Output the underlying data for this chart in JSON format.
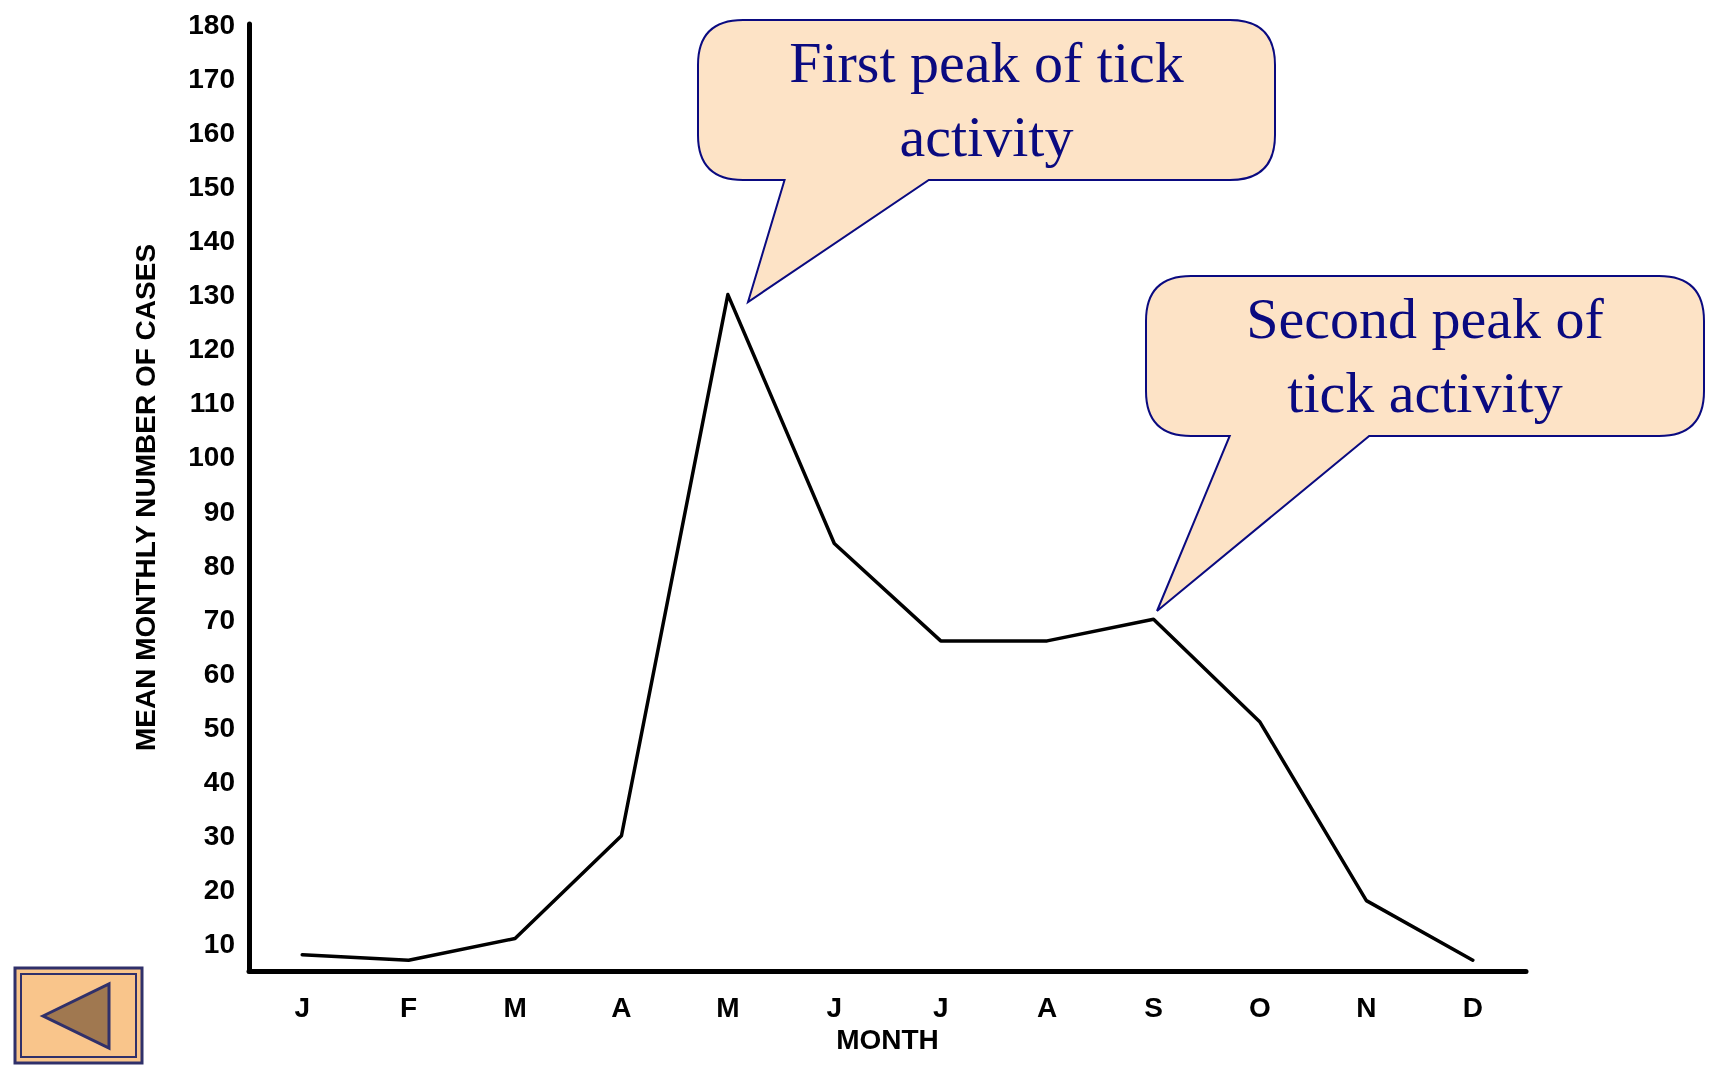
{
  "chart_data": {
    "type": "line",
    "xlabel": "MONTH",
    "ylabel": "MEAN MONTHLY NUMBER OF CASES",
    "categories": [
      "J",
      "F",
      "M",
      "A",
      "M",
      "J",
      "J",
      "A",
      "S",
      "O",
      "N",
      "D"
    ],
    "values": [
      8,
      7,
      11,
      30,
      130,
      84,
      66,
      66,
      70,
      51,
      18,
      7
    ],
    "color": "#000000",
    "marker": "none",
    "line_style": "solid",
    "ylim": [
      5,
      180
    ],
    "yticks": [
      10,
      20,
      30,
      40,
      50,
      60,
      70,
      80,
      90,
      100,
      110,
      120,
      130,
      140,
      150,
      160,
      170,
      180
    ],
    "annotations": [
      "First peak of tick activity",
      "Second peak of tick activity"
    ]
  }
}
